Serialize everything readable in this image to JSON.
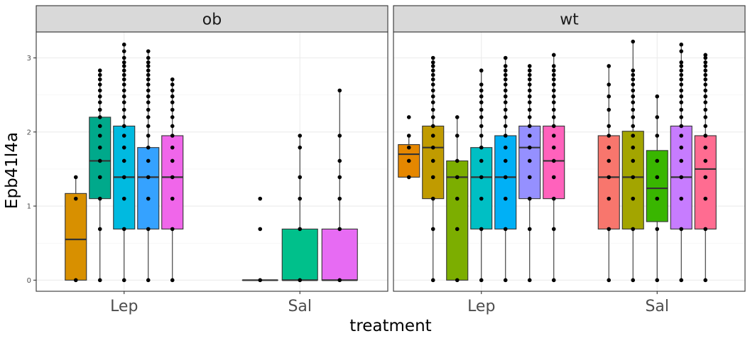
{
  "chart_data": {
    "type": "box",
    "ylabel": "Epb41l4a",
    "xlabel": "treatment",
    "ylim": [
      -0.15,
      3.35
    ],
    "y_ticks": [
      0,
      1,
      2,
      3
    ],
    "x_categories": [
      "Lep",
      "Sal"
    ],
    "grid": true,
    "legend": "none",
    "panels": [
      {
        "strip": "ob",
        "groups": [
          {
            "category": "Lep",
            "boxes": [
              {
                "color": "#D89000",
                "q1": 0.0,
                "median": 0.55,
                "q3": 1.17,
                "whisker_low": 0.0,
                "whisker_high": 1.39,
                "points": [
                  0,
                  1.1,
                  1.39
                ]
              },
              {
                "color": "#00A98B",
                "q1": 1.1,
                "median": 1.61,
                "q3": 2.2,
                "whisker_low": 0.0,
                "whisker_high": 2.83,
                "points": [
                  0,
                  0.69,
                  1.1,
                  1.39,
                  1.61,
                  1.79,
                  1.95,
                  2.08,
                  2.2,
                  2.3,
                  2.4,
                  2.48,
                  2.56,
                  2.64,
                  2.71,
                  2.77,
                  2.83
                ]
              },
              {
                "color": "#00BAE0",
                "q1": 0.69,
                "median": 1.39,
                "q3": 2.08,
                "whisker_low": 0.0,
                "whisker_high": 3.18,
                "points": [
                  0,
                  0.69,
                  1.1,
                  1.39,
                  1.61,
                  1.79,
                  1.95,
                  2.08,
                  2.2,
                  2.3,
                  2.4,
                  2.48,
                  2.56,
                  2.64,
                  2.71,
                  2.77,
                  2.83,
                  2.89,
                  2.94,
                  3.0,
                  3.09,
                  3.18
                ]
              },
              {
                "color": "#35A2FF",
                "q1": 0.69,
                "median": 1.39,
                "q3": 1.79,
                "whisker_low": 0.0,
                "whisker_high": 3.09,
                "points": [
                  0,
                  0.69,
                  1.1,
                  1.39,
                  1.61,
                  1.79,
                  1.95,
                  2.08,
                  2.2,
                  2.3,
                  2.4,
                  2.48,
                  2.56,
                  2.64,
                  2.71,
                  2.77,
                  2.83,
                  2.89,
                  2.94,
                  3.0,
                  3.09
                ]
              },
              {
                "color": "#F066EA",
                "q1": 0.69,
                "median": 1.39,
                "q3": 1.95,
                "whisker_low": 0.0,
                "whisker_high": 2.71,
                "points": [
                  0,
                  0.69,
                  1.1,
                  1.39,
                  1.61,
                  1.79,
                  1.95,
                  2.08,
                  2.2,
                  2.3,
                  2.4,
                  2.48,
                  2.56,
                  2.64,
                  2.71
                ]
              }
            ]
          },
          {
            "category": "Sal",
            "boxes": [
              {
                "color": "#00C08B",
                "q1": 0.0,
                "median": 0.0,
                "q3": 0.0,
                "whisker_low": 0.0,
                "whisker_high": 0.0,
                "points": [
                  0,
                  0.69,
                  1.1
                ]
              },
              {
                "color": "#00C08B",
                "q1": 0.0,
                "median": 0.0,
                "q3": 0.69,
                "whisker_low": 0.0,
                "whisker_high": 1.95,
                "points": [
                  0,
                  0.69,
                  1.1,
                  1.39,
                  1.79,
                  1.95
                ]
              },
              {
                "color": "#E76BF3",
                "q1": 0.0,
                "median": 0.0,
                "q3": 0.69,
                "whisker_low": 0.0,
                "whisker_high": 2.56,
                "points": [
                  0,
                  0.69,
                  1.1,
                  1.39,
                  1.61,
                  1.95,
                  2.56
                ]
              }
            ]
          }
        ]
      },
      {
        "strip": "wt",
        "groups": [
          {
            "category": "Lep",
            "boxes": [
              {
                "color": "#E58700",
                "q1": 1.39,
                "median": 1.7,
                "q3": 1.83,
                "whisker_low": 1.39,
                "whisker_high": 1.95,
                "points": [
                  1.39,
                  1.61,
                  1.79,
                  1.95,
                  2.2
                ]
              },
              {
                "color": "#C09B00",
                "q1": 1.1,
                "median": 1.79,
                "q3": 2.08,
                "whisker_low": 0.0,
                "whisker_high": 3.0,
                "points": [
                  0,
                  0.69,
                  1.1,
                  1.39,
                  1.61,
                  1.79,
                  1.95,
                  2.08,
                  2.2,
                  2.3,
                  2.4,
                  2.48,
                  2.56,
                  2.64,
                  2.71,
                  2.77,
                  2.83,
                  2.89,
                  2.94,
                  3.0
                ]
              },
              {
                "color": "#7CAE00",
                "q1": 0.0,
                "median": 1.39,
                "q3": 1.61,
                "whisker_low": 0.0,
                "whisker_high": 2.2,
                "points": [
                  0,
                  0.69,
                  1.1,
                  1.39,
                  1.61,
                  1.95,
                  2.2
                ]
              },
              {
                "color": "#00BFC4",
                "q1": 0.69,
                "median": 1.39,
                "q3": 1.79,
                "whisker_low": 0.0,
                "whisker_high": 2.83,
                "points": [
                  0,
                  0.69,
                  1.1,
                  1.39,
                  1.61,
                  1.79,
                  1.95,
                  2.08,
                  2.2,
                  2.3,
                  2.4,
                  2.48,
                  2.56,
                  2.64,
                  2.83
                ]
              },
              {
                "color": "#00B0F6",
                "q1": 0.69,
                "median": 1.39,
                "q3": 1.95,
                "whisker_low": 0.0,
                "whisker_high": 3.0,
                "points": [
                  0,
                  0.69,
                  1.1,
                  1.39,
                  1.61,
                  1.79,
                  1.95,
                  2.08,
                  2.2,
                  2.3,
                  2.4,
                  2.48,
                  2.56,
                  2.64,
                  2.71,
                  2.77,
                  2.83,
                  2.89,
                  3.0
                ]
              },
              {
                "color": "#9590FF",
                "q1": 1.1,
                "median": 1.79,
                "q3": 2.08,
                "whisker_low": 0.0,
                "whisker_high": 2.89,
                "points": [
                  0,
                  0.69,
                  1.1,
                  1.39,
                  1.61,
                  1.79,
                  1.95,
                  2.08,
                  2.2,
                  2.3,
                  2.4,
                  2.48,
                  2.56,
                  2.64,
                  2.71,
                  2.77,
                  2.83,
                  2.89
                ]
              },
              {
                "color": "#FF62BC",
                "q1": 1.1,
                "median": 1.61,
                "q3": 2.08,
                "whisker_low": 0.0,
                "whisker_high": 3.04,
                "points": [
                  0,
                  0.69,
                  1.1,
                  1.39,
                  1.61,
                  1.79,
                  1.95,
                  2.08,
                  2.2,
                  2.3,
                  2.4,
                  2.48,
                  2.56,
                  2.64,
                  2.71,
                  2.77,
                  2.83,
                  2.89,
                  3.04
                ]
              }
            ]
          },
          {
            "category": "Sal",
            "boxes": [
              {
                "color": "#F8766D",
                "q1": 0.69,
                "median": 1.39,
                "q3": 1.95,
                "whisker_low": 0.0,
                "whisker_high": 2.89,
                "points": [
                  0,
                  0.69,
                  1.1,
                  1.39,
                  1.61,
                  1.79,
                  1.95,
                  2.08,
                  2.3,
                  2.48,
                  2.64,
                  2.89
                ]
              },
              {
                "color": "#A3A500",
                "q1": 0.69,
                "median": 1.39,
                "q3": 2.01,
                "whisker_low": 0.0,
                "whisker_high": 3.22,
                "points": [
                  0,
                  0.69,
                  1.1,
                  1.39,
                  1.61,
                  1.79,
                  1.95,
                  2.08,
                  2.2,
                  2.3,
                  2.4,
                  2.48,
                  2.56,
                  2.64,
                  2.71,
                  2.77,
                  2.83,
                  3.22
                ]
              },
              {
                "color": "#39B600",
                "q1": 0.79,
                "median": 1.24,
                "q3": 1.75,
                "whisker_low": 0.0,
                "whisker_high": 2.48,
                "points": [
                  0,
                  0.69,
                  1.1,
                  1.39,
                  1.61,
                  1.95,
                  2.2,
                  2.48
                ]
              },
              {
                "color": "#C77CFF",
                "q1": 0.69,
                "median": 1.39,
                "q3": 2.08,
                "whisker_low": 0.0,
                "whisker_high": 3.18,
                "points": [
                  0,
                  0.69,
                  1.1,
                  1.39,
                  1.61,
                  1.79,
                  1.95,
                  2.08,
                  2.2,
                  2.3,
                  2.4,
                  2.48,
                  2.56,
                  2.64,
                  2.71,
                  2.77,
                  2.83,
                  2.89,
                  2.94,
                  3.09,
                  3.18
                ]
              },
              {
                "color": "#FF6C91",
                "q1": 0.69,
                "median": 1.5,
                "q3": 1.95,
                "whisker_low": 0.0,
                "whisker_high": 3.04,
                "points": [
                  0,
                  0.69,
                  1.1,
                  1.39,
                  1.61,
                  1.79,
                  1.95,
                  2.08,
                  2.2,
                  2.3,
                  2.4,
                  2.48,
                  2.56,
                  2.64,
                  2.71,
                  2.77,
                  2.83,
                  2.89,
                  2.94,
                  3.0,
                  3.04
                ]
              }
            ]
          }
        ]
      }
    ]
  }
}
